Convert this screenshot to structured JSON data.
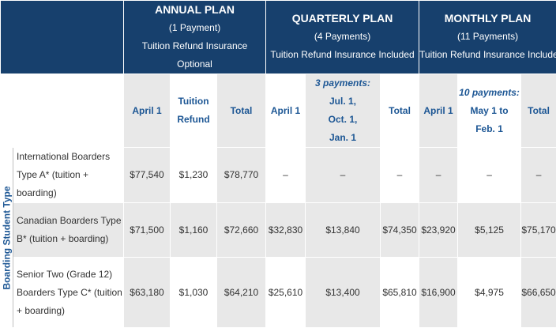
{
  "plans": [
    {
      "name": "ANNUAL PLAN",
      "payments": "(1 Payment)",
      "insurance": "Tuition Refund Insurance",
      "insurance_note": "Optional"
    },
    {
      "name": "QUARTERLY PLAN",
      "payments": "(4 Payments)",
      "insurance": "Tuition Refund Insurance Included"
    },
    {
      "name": "MONTHLY PLAN",
      "payments": "(11 Payments)",
      "insurance": "Tuition Refund Insurance Included"
    }
  ],
  "subheaders": {
    "annual": [
      "April 1",
      "Tuition Refund",
      "Total"
    ],
    "quarterly": {
      "first": "April 1",
      "installments_title": "3 payments:",
      "installments": [
        "Jul. 1,",
        "Oct. 1,",
        "Jan. 1"
      ],
      "total": "Total"
    },
    "monthly": {
      "first": "April 1",
      "installments_title": "10 payments:",
      "installments": [
        "May 1 to",
        "Feb. 1"
      ],
      "total": "Total"
    }
  },
  "side_label": "Boarding Student Type",
  "rows": [
    {
      "label": "International Boarders Type A* (tuition + boarding)",
      "values": [
        "$77,540",
        "$1,230",
        "$78,770",
        "–",
        "–",
        "–",
        "–",
        "–",
        "–"
      ]
    },
    {
      "label": "Canadian Boarders Type B* (tuition + boarding)",
      "values": [
        "$71,500",
        "$1,160",
        "$72,660",
        "$32,830",
        "$13,840",
        "$74,350",
        "$23,920",
        "$5,125",
        "$75,170"
      ]
    },
    {
      "label": "Senior Two (Grade 12) Boarders Type C* (tuition + boarding)",
      "values": [
        "$63,180",
        "$1,030",
        "$64,210",
        "$25,610",
        "$13,400",
        "$65,810",
        "$16,900",
        "$4,975",
        "$66,650"
      ]
    }
  ],
  "colors": {
    "header_bg": "#17406d",
    "accent_text": "#1c5694",
    "gray_cell": "#e8e8e8"
  }
}
